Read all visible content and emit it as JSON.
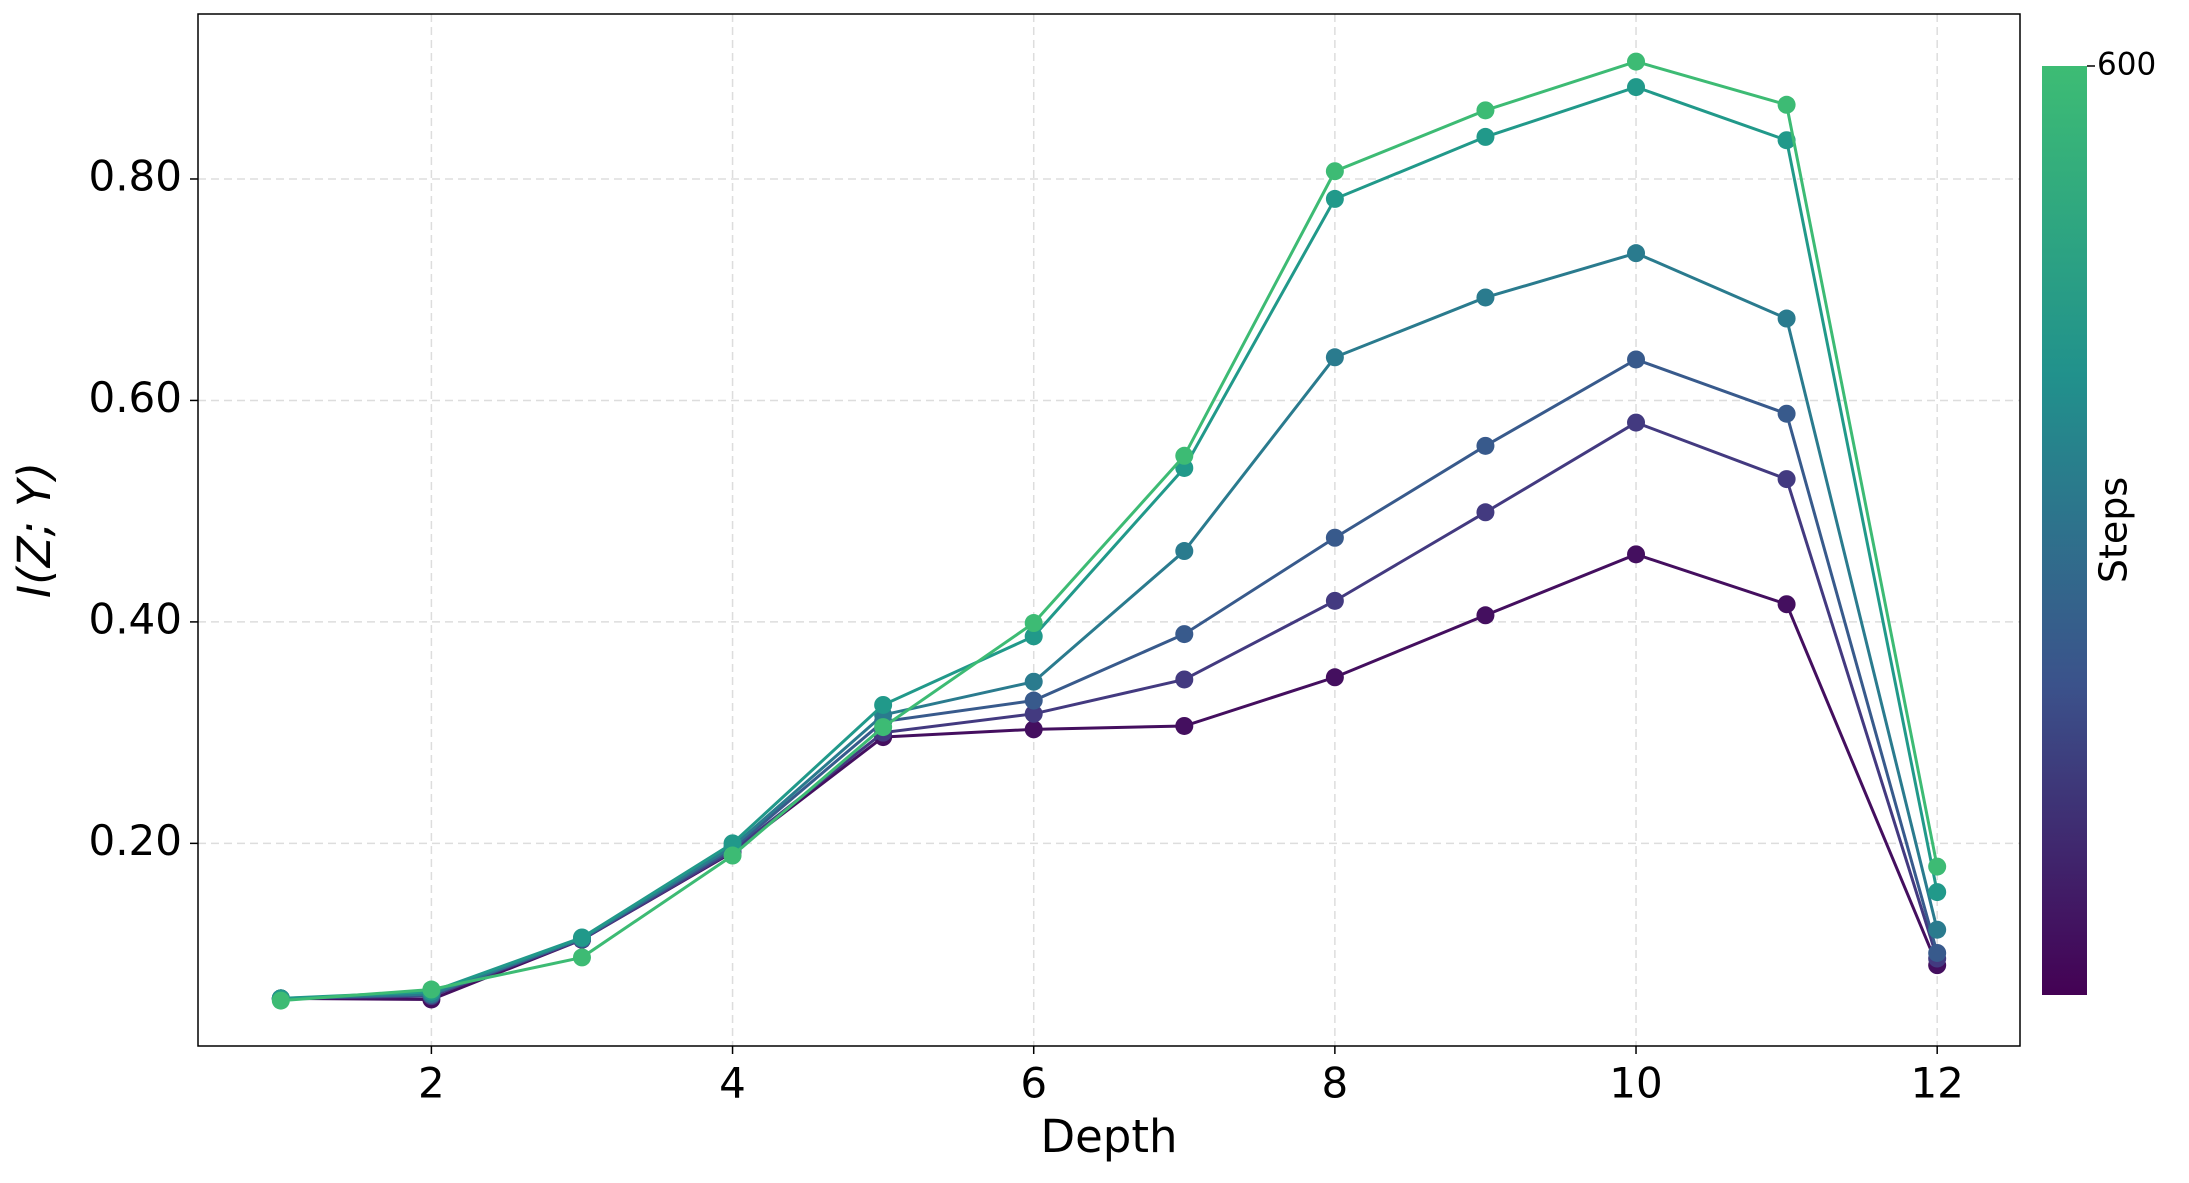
{
  "chart_data": {
    "type": "line",
    "xlabel": "Depth",
    "ylabel": "I(Z; Y)",
    "x": [
      1,
      2,
      3,
      4,
      5,
      6,
      7,
      8,
      9,
      10,
      11,
      12
    ],
    "series": [
      {
        "color": "#440f5f",
        "values": [
          0.06,
          0.059,
          0.113,
          0.192,
          0.296,
          0.303,
          0.306,
          0.35,
          0.406,
          0.461,
          0.416,
          0.09
        ]
      },
      {
        "color": "#433a80",
        "values": [
          0.06,
          0.062,
          0.113,
          0.193,
          0.3,
          0.317,
          0.348,
          0.419,
          0.499,
          0.58,
          0.529,
          0.096
        ]
      },
      {
        "color": "#385a8c",
        "values": [
          0.06,
          0.063,
          0.114,
          0.195,
          0.31,
          0.329,
          0.389,
          0.476,
          0.559,
          0.637,
          0.588,
          0.101
        ]
      },
      {
        "color": "#2a7b8e",
        "values": [
          0.06,
          0.064,
          0.114,
          0.197,
          0.316,
          0.346,
          0.464,
          0.639,
          0.693,
          0.733,
          0.674,
          0.122
        ]
      },
      {
        "color": "#21998a",
        "values": [
          0.06,
          0.066,
          0.115,
          0.2,
          0.325,
          0.387,
          0.539,
          0.782,
          0.838,
          0.883,
          0.835,
          0.156
        ]
      },
      {
        "color": "#3dbb74",
        "values": [
          0.058,
          0.068,
          0.097,
          0.189,
          0.305,
          0.399,
          0.55,
          0.807,
          0.862,
          0.906,
          0.867,
          0.179
        ]
      }
    ],
    "xlim": [
      0.45,
      12.55
    ],
    "xticks": [
      2,
      4,
      6,
      8,
      10,
      12
    ],
    "ylim": [
      0.017,
      0.949
    ],
    "yticks": [
      {
        "value": 0.2,
        "label": "0.20"
      },
      {
        "value": 0.4,
        "label": "0.40"
      },
      {
        "value": 0.6,
        "label": "0.60"
      },
      {
        "value": 0.8,
        "label": "0.80"
      }
    ],
    "grid": true,
    "colorbar": {
      "label": "Steps",
      "clim": [
        0,
        600
      ],
      "ticks": [
        600
      ],
      "colors": [
        "#440154",
        "#3b528b",
        "#21918c",
        "#3dbc74"
      ]
    }
  }
}
